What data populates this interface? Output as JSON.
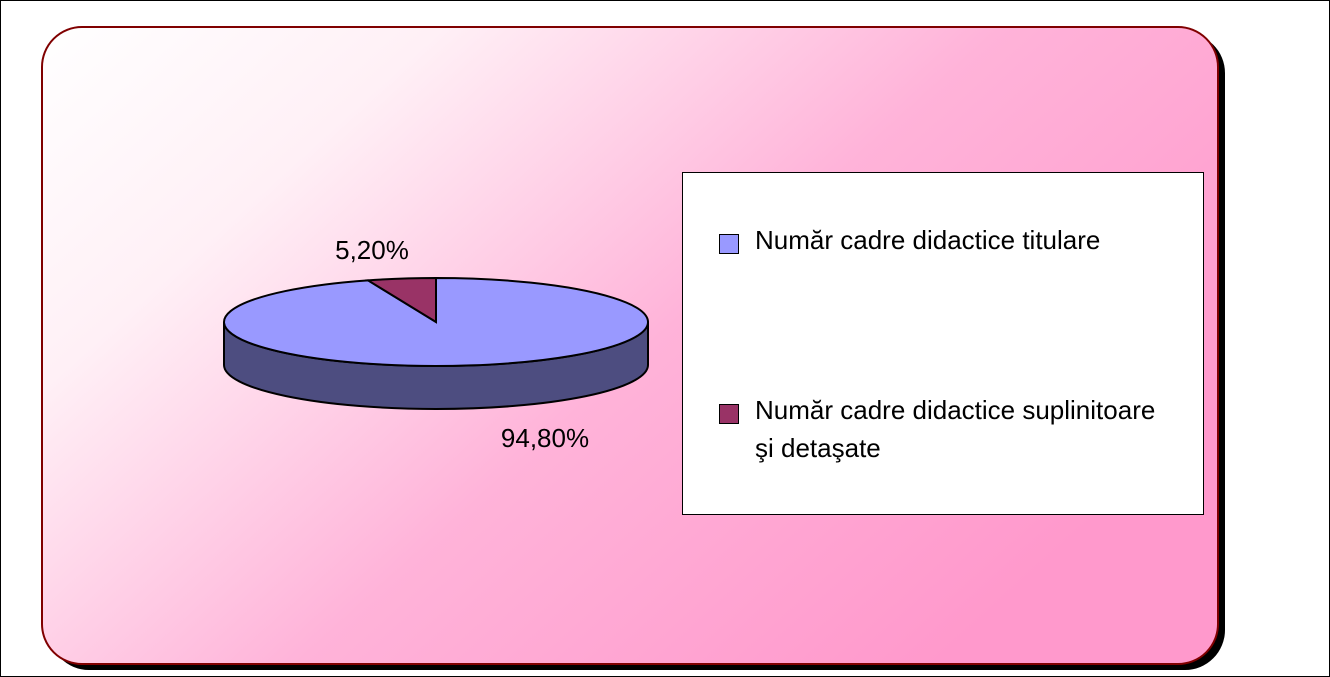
{
  "chart_data": {
    "type": "pie",
    "categories": [
      "Număr cadre didactice titulare",
      "Număr cadre didactice suplinitoare şi detaşate"
    ],
    "values": [
      94.8,
      5.2
    ],
    "value_labels": [
      "94,80%",
      "5,20%"
    ],
    "colors": [
      "#9999ff",
      "#993366"
    ]
  }
}
